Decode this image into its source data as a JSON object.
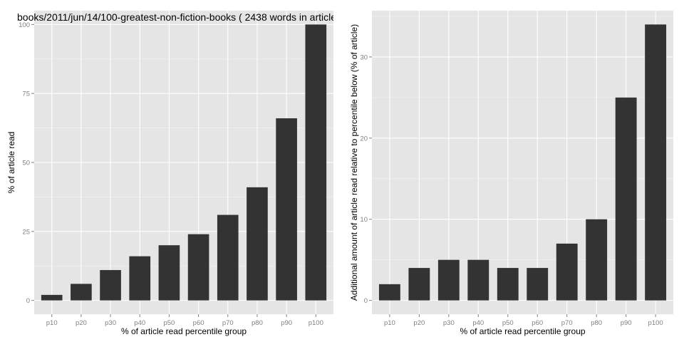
{
  "chart_data": [
    {
      "type": "bar",
      "title": "books/2011/jun/14/100-greatest-non-fiction-books ( 2438 words in article",
      "xlabel": "% of article read percentile group",
      "ylabel": "% of article read",
      "categories": [
        "p10",
        "p20",
        "p30",
        "p40",
        "p50",
        "p60",
        "p70",
        "p80",
        "p90",
        "p100"
      ],
      "values": [
        2,
        6,
        11,
        16,
        20,
        24,
        31,
        41,
        66,
        100
      ],
      "ylim": [
        -5,
        105
      ],
      "yticks": [
        0,
        25,
        50,
        75,
        100
      ],
      "ytick_labels": [
        "0",
        "25",
        "50",
        "75",
        "100"
      ],
      "grid": true,
      "bar_color": "#333333",
      "panel_color": "#e5e5e5"
    },
    {
      "type": "bar",
      "title": "",
      "xlabel": "% of article read percentile group",
      "ylabel": "Additional amount of article read relative to percentile below (% of article)",
      "categories": [
        "p10",
        "p20",
        "p30",
        "p40",
        "p50",
        "p60",
        "p70",
        "p80",
        "p90",
        "p100"
      ],
      "values": [
        2,
        4,
        5,
        5,
        4,
        4,
        7,
        10,
        25,
        34
      ],
      "ylim": [
        -1.7,
        35.7
      ],
      "yticks": [
        0,
        10,
        20,
        30
      ],
      "ytick_labels": [
        "0",
        "10",
        "20",
        "30"
      ],
      "grid": true,
      "bar_color": "#333333",
      "panel_color": "#e5e5e5"
    }
  ]
}
